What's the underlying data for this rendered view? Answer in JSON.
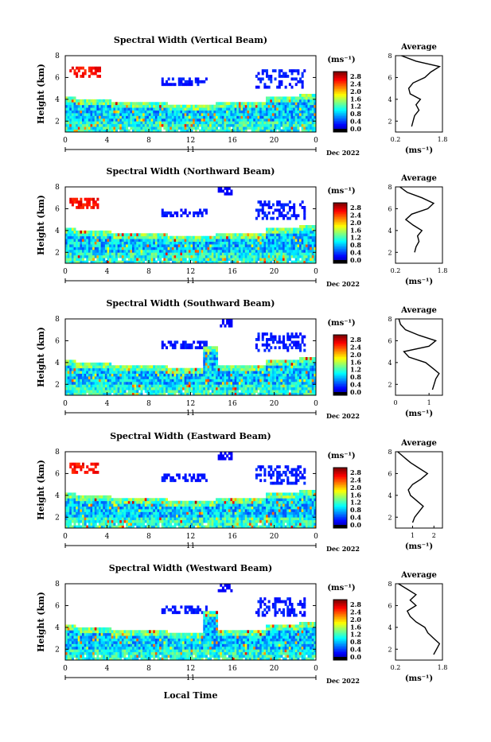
{
  "figure": {
    "date_label": "Dec 2022",
    "day_label": "11",
    "xlabel": "Local Time",
    "ylabel": "Height (km)",
    "unit_label": "(ms⁻¹)",
    "avg_title": "Average",
    "avg_xlabel": "(ms⁻¹)"
  },
  "chart_data": [
    {
      "type": "heatmap",
      "title": "Spectral Width (Vertical Beam)",
      "x_ticks": [
        "0",
        "4",
        "8",
        "12",
        "16",
        "20",
        "0"
      ],
      "y_ticks": [
        "2",
        "4",
        "6",
        "8"
      ],
      "xlim": [
        0,
        24
      ],
      "ylim": [
        1,
        8
      ],
      "colorbar_ticks": [
        "2.8",
        "2.4",
        "2.0",
        "1.6",
        "1.2",
        "0.8",
        "0.4",
        "0.0"
      ],
      "colorbar_range": [
        0,
        2.8
      ],
      "average_profile": {
        "x_ticks": [
          "0.2",
          "1.8"
        ],
        "xlim": [
          0.2,
          1.8
        ],
        "ylim": [
          1,
          8
        ],
        "y_ticks": [
          "2",
          "4",
          "6",
          "8"
        ],
        "height_km": [
          1.5,
          2.0,
          2.5,
          3.0,
          3.5,
          4.0,
          4.5,
          5.0,
          5.5,
          6.0,
          6.5,
          7.0,
          7.5,
          8.0
        ],
        "values": [
          0.75,
          0.8,
          0.85,
          1.0,
          0.9,
          1.05,
          0.7,
          0.65,
          0.8,
          1.2,
          1.4,
          1.7,
          0.9,
          0.4
        ]
      }
    },
    {
      "type": "heatmap",
      "title": "Spectral Width (Northward Beam)",
      "x_ticks": [
        "0",
        "4",
        "8",
        "12",
        "16",
        "20",
        "0"
      ],
      "y_ticks": [
        "2",
        "4",
        "6",
        "8"
      ],
      "xlim": [
        0,
        24
      ],
      "ylim": [
        1,
        8
      ],
      "colorbar_ticks": [
        "2.8",
        "2.4",
        "2.0",
        "1.6",
        "1.2",
        "0.8",
        "0.4",
        "0.0"
      ],
      "colorbar_range": [
        0,
        2.8
      ],
      "average_profile": {
        "x_ticks": [
          "0.2",
          "1.8"
        ],
        "xlim": [
          0.2,
          1.8
        ],
        "ylim": [
          1,
          8
        ],
        "y_ticks": [
          "2",
          "4",
          "6",
          "8"
        ],
        "height_km": [
          2.0,
          2.5,
          3.0,
          3.5,
          4.0,
          4.5,
          5.0,
          5.5,
          6.0,
          6.5,
          7.0,
          7.5,
          8.0
        ],
        "values": [
          0.85,
          0.9,
          1.0,
          0.95,
          1.1,
          0.8,
          0.55,
          0.75,
          1.3,
          1.5,
          1.1,
          0.6,
          0.35
        ]
      }
    },
    {
      "type": "heatmap",
      "title": "Spectral Width (Southward Beam)",
      "x_ticks": [
        "0",
        "4",
        "8",
        "12",
        "16",
        "20",
        "0"
      ],
      "y_ticks": [
        "2",
        "4",
        "6",
        "8"
      ],
      "xlim": [
        0,
        24
      ],
      "ylim": [
        1,
        8
      ],
      "colorbar_ticks": [
        "2.8",
        "2.4",
        "2.0",
        "1.6",
        "1.2",
        "0.8",
        "0.4",
        "0.0"
      ],
      "colorbar_range": [
        0,
        2.8
      ],
      "average_profile": {
        "x_ticks": [
          "0",
          "1"
        ],
        "xlim": [
          0,
          1.4
        ],
        "ylim": [
          1,
          8
        ],
        "y_ticks": [
          "2",
          "4",
          "6",
          "8"
        ],
        "height_km": [
          1.5,
          2.0,
          2.5,
          3.0,
          3.5,
          4.0,
          4.5,
          5.0,
          5.5,
          6.0,
          6.5,
          7.0,
          7.5,
          8.0
        ],
        "values": [
          1.1,
          1.15,
          1.2,
          1.3,
          1.1,
          0.9,
          0.4,
          0.25,
          1.0,
          1.2,
          0.7,
          0.3,
          0.15,
          0.1
        ]
      }
    },
    {
      "type": "heatmap",
      "title": "Spectral Width (Eastward Beam)",
      "x_ticks": [
        "0",
        "4",
        "8",
        "12",
        "16",
        "20",
        "0"
      ],
      "y_ticks": [
        "2",
        "4",
        "6",
        "8"
      ],
      "xlim": [
        0,
        24
      ],
      "ylim": [
        1,
        8
      ],
      "colorbar_ticks": [
        "2.8",
        "2.4",
        "2.0",
        "1.6",
        "1.2",
        "0.8",
        "0.4",
        "0.0"
      ],
      "colorbar_range": [
        0,
        2.8
      ],
      "average_profile": {
        "x_ticks": [
          "1",
          "2"
        ],
        "xlim": [
          0.2,
          2.4
        ],
        "ylim": [
          1,
          8
        ],
        "y_ticks": [
          "2",
          "4",
          "6",
          "8"
        ],
        "height_km": [
          1.5,
          2.0,
          2.5,
          3.0,
          3.5,
          4.0,
          4.5,
          5.0,
          5.5,
          6.0,
          6.5,
          7.0,
          7.5,
          8.0
        ],
        "values": [
          1.0,
          1.1,
          1.3,
          1.5,
          1.2,
          0.9,
          0.8,
          1.0,
          1.4,
          1.7,
          1.3,
          0.9,
          0.6,
          0.3
        ]
      }
    },
    {
      "type": "heatmap",
      "title": "Spectral Width (Westward Beam)",
      "x_ticks": [
        "0",
        "4",
        "8",
        "12",
        "16",
        "20",
        "0"
      ],
      "y_ticks": [
        "2",
        "4",
        "6",
        "8"
      ],
      "xlim": [
        0,
        24
      ],
      "ylim": [
        1,
        8
      ],
      "colorbar_ticks": [
        "2.8",
        "2.4",
        "2.0",
        "1.6",
        "1.2",
        "0.8",
        "0.4",
        "0.0"
      ],
      "colorbar_range": [
        0,
        2.8
      ],
      "average_profile": {
        "x_ticks": [
          "0.2",
          "1.8"
        ],
        "xlim": [
          0.2,
          1.8
        ],
        "ylim": [
          1,
          8
        ],
        "y_ticks": [
          "2",
          "4",
          "6",
          "8"
        ],
        "height_km": [
          1.5,
          2.0,
          2.5,
          3.0,
          3.5,
          4.0,
          4.5,
          5.0,
          5.5,
          6.0,
          6.5,
          7.0,
          7.5,
          8.0
        ],
        "values": [
          1.5,
          1.6,
          1.7,
          1.5,
          1.3,
          1.2,
          0.9,
          0.7,
          0.6,
          0.9,
          0.7,
          0.9,
          0.6,
          0.3
        ]
      }
    }
  ]
}
